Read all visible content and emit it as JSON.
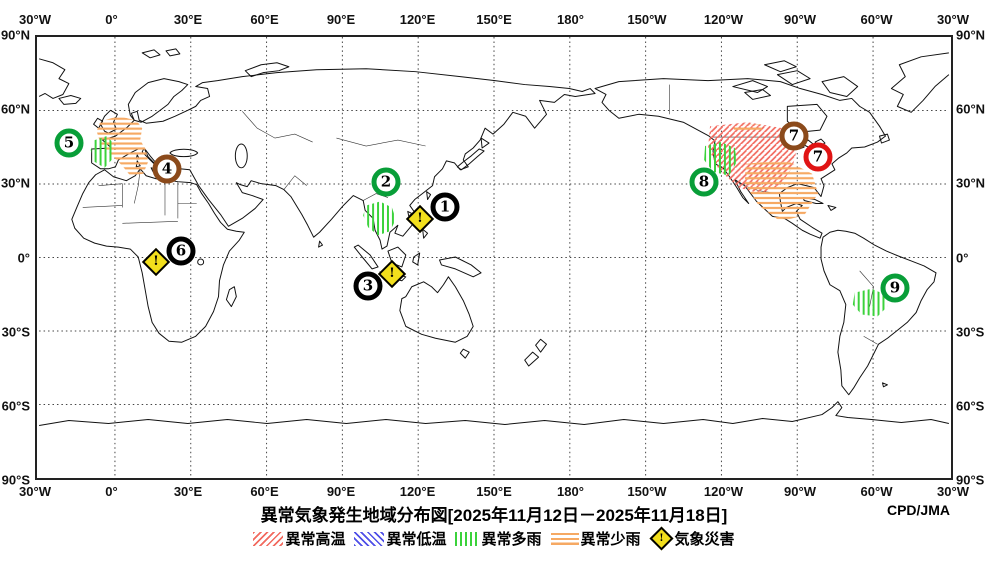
{
  "figure": {
    "title": "異常気象発生地域分布図[2025年11月12日－2025年11月18日]",
    "period_start": "2025年11月12日",
    "period_end": "2025年11月18日",
    "credit": "CPD/JMA"
  },
  "axes": {
    "longitude_labels": [
      "30°W",
      "0°",
      "30°E",
      "60°E",
      "90°E",
      "120°E",
      "150°E",
      "180°",
      "150°W",
      "120°W",
      "90°W",
      "60°W",
      "30°W"
    ],
    "latitude_labels": [
      "90°N",
      "60°N",
      "30°N",
      "0°",
      "30°S",
      "60°S",
      "90°S"
    ],
    "grid_interval_degrees": 30
  },
  "legend": {
    "warn_glyph": "!",
    "items": [
      {
        "key": "extreme-high-temperature",
        "label": "異常高温",
        "swatch": "red-diagonal-hatch",
        "color": "#f26a5f"
      },
      {
        "key": "extreme-low-temperature",
        "label": "異常低温",
        "swatch": "blue-diagonal-hatch",
        "color": "#4f4fe8"
      },
      {
        "key": "extreme-heavy-rain",
        "label": "異常多雨",
        "swatch": "green-vertical-hatch",
        "color": "#3bd23b"
      },
      {
        "key": "extreme-light-rain",
        "label": "異常少雨",
        "swatch": "orange-horizontal-hatch",
        "color": "#f6a963"
      },
      {
        "key": "weather-disaster",
        "label": "気象災害",
        "swatch": "yellow-diamond",
        "color": "#f2df1c"
      }
    ]
  },
  "markers": [
    {
      "label": "1",
      "ring": "black",
      "approx_lon": "131E",
      "approx_lat": "20N"
    },
    {
      "label": "2",
      "ring": "green",
      "approx_lon": "108E",
      "approx_lat": "30N"
    },
    {
      "label": "3",
      "ring": "black",
      "approx_lon": "101E",
      "approx_lat": "11S"
    },
    {
      "label": "4",
      "ring": "brown",
      "approx_lon": "22E",
      "approx_lat": "36N"
    },
    {
      "label": "5",
      "ring": "green",
      "approx_lon": "17W",
      "approx_lat": "46N"
    },
    {
      "label": "6",
      "ring": "black",
      "approx_lon": "27E",
      "approx_lat": "3N"
    },
    {
      "label": "7",
      "ring": "brown",
      "approx_lon": "92W",
      "approx_lat": "49N"
    },
    {
      "label": "7",
      "ring": "red",
      "approx_lon": "83W",
      "approx_lat": "41N"
    },
    {
      "label": "8",
      "ring": "green",
      "approx_lon": "128W",
      "approx_lat": "31N"
    },
    {
      "label": "9",
      "ring": "green",
      "approx_lon": "53W",
      "approx_lat": "12S"
    }
  ],
  "disaster_icons": [
    {
      "near_marker": "1",
      "area": "Philippines"
    },
    {
      "near_marker": "3",
      "area": "Indonesia"
    },
    {
      "near_marker": "6",
      "area": "central Africa"
    }
  ],
  "hatched_regions": [
    {
      "type": "異常少雨",
      "pattern": "orange-horizontal-hatch",
      "area": "western Europe (France / Iberia / Italy)"
    },
    {
      "type": "異常多雨",
      "pattern": "green-vertical-hatch",
      "area": "west of Iberian Peninsula / NW Africa coast"
    },
    {
      "type": "異常多雨",
      "pattern": "green-vertical-hatch",
      "area": "Indochina"
    },
    {
      "type": "異常高温",
      "pattern": "red-diagonal-hatch",
      "area": "central North America"
    },
    {
      "type": "異常多雨",
      "pattern": "green-vertical-hatch",
      "area": "west coast of North America"
    },
    {
      "type": "異常少雨",
      "pattern": "orange-horizontal-hatch",
      "area": "southern North America / Mexico"
    },
    {
      "type": "異常多雨",
      "pattern": "green-vertical-hatch",
      "area": "central South America"
    }
  ]
}
